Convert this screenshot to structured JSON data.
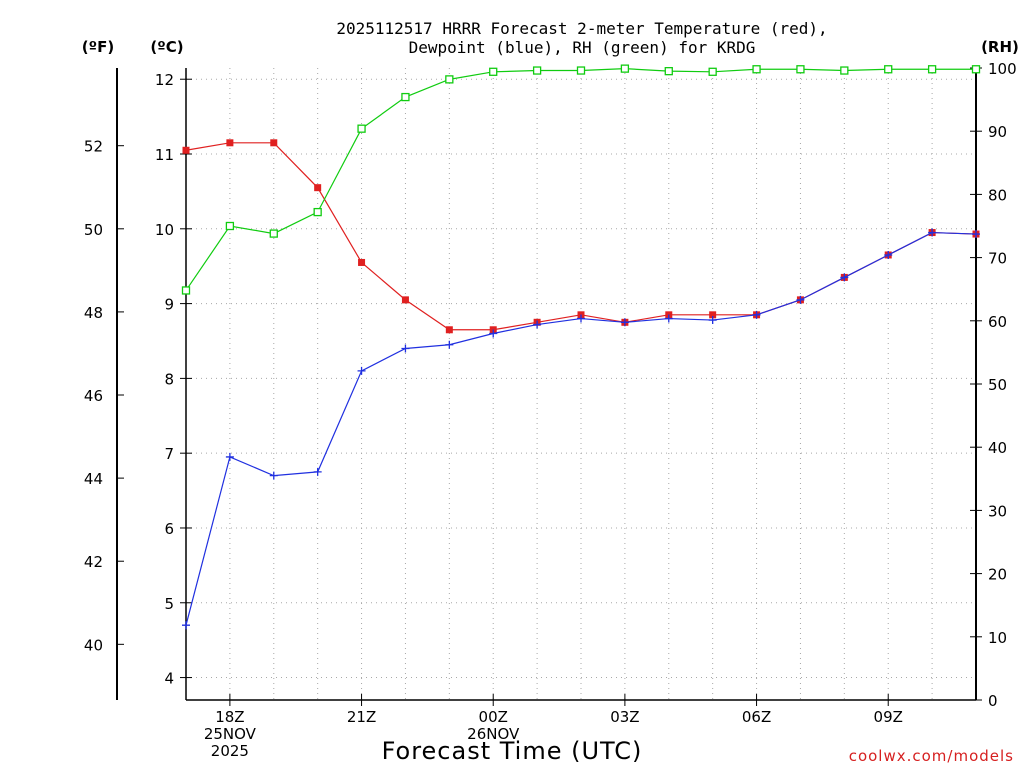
{
  "title": {
    "line1": "2025112517 HRRR Forecast 2-meter Temperature (red),",
    "line2": "Dewpoint (blue), RH (green) for KRDG"
  },
  "axis_units": {
    "fahrenheit": "(ºF)",
    "celsius": "(ºC)",
    "rh": "(RH)"
  },
  "x_axis_label": "Forecast Time (UTC)",
  "credit": "coolwx.com/models",
  "colors": {
    "temperature": "#e02020",
    "dewpoint": "#2030e0",
    "rh": "#10cc10",
    "axis": "#000000",
    "grid": "#a8a8a8"
  },
  "chart_data": {
    "type": "line",
    "title": "2025112517 HRRR Forecast 2-meter Temperature (red), Dewpoint (blue), RH (green) for KRDG",
    "xlabel": "Forecast Time (UTC)",
    "x": [
      0,
      1,
      2,
      3,
      4,
      5,
      6,
      7,
      8,
      9,
      10,
      11,
      12,
      13,
      14,
      15,
      16,
      17,
      18
    ],
    "xlim": [
      0,
      18
    ],
    "x_ticks": [
      {
        "x": 1,
        "lines": [
          "18Z",
          "25NOV",
          "2025"
        ]
      },
      {
        "x": 4,
        "lines": [
          "21Z"
        ]
      },
      {
        "x": 7,
        "lines": [
          "00Z",
          "26NOV"
        ]
      },
      {
        "x": 10,
        "lines": [
          "03Z"
        ]
      },
      {
        "x": 13,
        "lines": [
          "06Z"
        ]
      },
      {
        "x": 16,
        "lines": [
          "09Z"
        ]
      }
    ],
    "y_celsius": {
      "label": "(ºC)",
      "lim": [
        3.7,
        12.15
      ],
      "ticks": [
        4,
        5,
        6,
        7,
        8,
        9,
        10,
        11,
        12
      ]
    },
    "y_fahrenheit": {
      "label": "(ºF)",
      "ticks": [
        40,
        42,
        44,
        46,
        48,
        50,
        52
      ]
    },
    "y_rh": {
      "label": "(RH)",
      "lim": [
        0,
        100
      ],
      "ticks": [
        0,
        10,
        20,
        30,
        40,
        50,
        60,
        70,
        80,
        90,
        100
      ]
    },
    "series": [
      {
        "name": "Temperature",
        "axis": "celsius",
        "color": "#e02020",
        "marker": "filled-square",
        "values": [
          11.05,
          11.15,
          11.15,
          10.55,
          9.55,
          9.05,
          8.65,
          8.65,
          8.75,
          8.85,
          8.75,
          8.85,
          8.85,
          8.85,
          9.05,
          9.35,
          9.65,
          9.95,
          9.93
        ]
      },
      {
        "name": "Dewpoint",
        "axis": "celsius",
        "color": "#2030e0",
        "marker": "plus",
        "values": [
          4.7,
          6.95,
          6.7,
          6.75,
          8.1,
          8.4,
          8.45,
          8.6,
          8.72,
          8.8,
          8.75,
          8.8,
          8.78,
          8.85,
          9.05,
          9.35,
          9.65,
          9.95,
          9.93
        ]
      },
      {
        "name": "RH",
        "axis": "rh",
        "color": "#10cc10",
        "marker": "open-square",
        "values": [
          64.8,
          75.0,
          73.8,
          77.2,
          90.4,
          95.4,
          98.2,
          99.4,
          99.6,
          99.6,
          99.9,
          99.5,
          99.4,
          99.8,
          99.8,
          99.6,
          99.8,
          99.8,
          99.8
        ]
      }
    ]
  }
}
